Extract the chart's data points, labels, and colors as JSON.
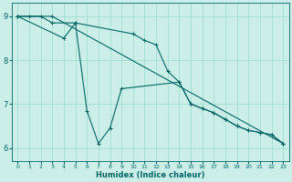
{
  "xlabel": "Humidex (Indice chaleur)",
  "bg_color": "#cceee8",
  "line_color": "#006666",
  "grid_color": "#99ddcc",
  "xlim": [
    -0.5,
    23.5
  ],
  "ylim": [
    5.7,
    9.3
  ],
  "xticks": [
    0,
    1,
    2,
    3,
    4,
    5,
    6,
    7,
    8,
    9,
    10,
    11,
    12,
    13,
    14,
    15,
    16,
    17,
    18,
    19,
    20,
    21,
    22,
    23
  ],
  "yticks": [
    6,
    7,
    8,
    9
  ],
  "line1": {
    "x": [
      0,
      1,
      2,
      3,
      5,
      10,
      11,
      12,
      13,
      14,
      15,
      16,
      17,
      18,
      19,
      20,
      21,
      22,
      23
    ],
    "y": [
      9.0,
      9.0,
      9.0,
      8.85,
      8.85,
      8.6,
      8.45,
      8.35,
      7.75,
      7.5,
      7.0,
      6.9,
      6.8,
      6.65,
      6.5,
      6.4,
      6.35,
      6.3,
      6.1
    ]
  },
  "line2": {
    "x": [
      0,
      4,
      5,
      6,
      7,
      8,
      9,
      14,
      15,
      16,
      17,
      18,
      19,
      20,
      21,
      22,
      23
    ],
    "y": [
      9.0,
      8.5,
      8.85,
      6.85,
      6.1,
      6.45,
      7.35,
      7.5,
      7.0,
      6.9,
      6.8,
      6.65,
      6.5,
      6.4,
      6.35,
      6.3,
      6.1
    ]
  },
  "line3": {
    "x": [
      0,
      3,
      23
    ],
    "y": [
      9.0,
      9.0,
      6.1
    ]
  }
}
